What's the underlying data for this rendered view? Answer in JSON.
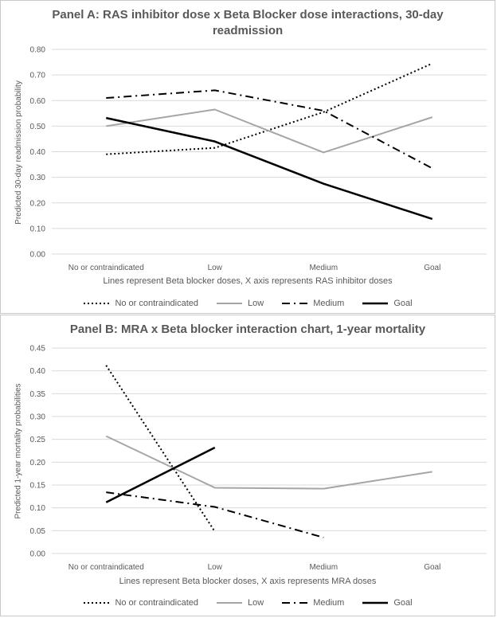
{
  "chart_data": [
    {
      "type": "line",
      "title": "Panel A: RAS inhibitor dose x Beta Blocker dose interactions, 30-day readmission",
      "title_line1": "Panel A: RAS inhibitor dose x Beta Blocker dose interactions, 30-day",
      "title_line2": "readmission",
      "xlabel": "Lines represent Beta blocker doses, X axis represents RAS inhibitor doses",
      "ylabel": "Predicted 30-day readmission probability",
      "categories": [
        "No or contraindicated",
        "Low",
        "Medium",
        "Goal"
      ],
      "ylim": [
        0,
        0.8
      ],
      "yticks": [
        "0.00",
        "0.10",
        "0.20",
        "0.30",
        "0.40",
        "0.50",
        "0.60",
        "0.70",
        "0.80"
      ],
      "grid": true,
      "legend": "bottom",
      "series": [
        {
          "name": "No or contraindicated",
          "style": "dotted",
          "color": "#000000",
          "values": [
            0.39,
            0.415,
            0.555,
            0.745
          ]
        },
        {
          "name": "Low",
          "style": "solid",
          "color": "#a6a6a6",
          "values": [
            0.5,
            0.565,
            0.397,
            0.535
          ]
        },
        {
          "name": "Medium",
          "style": "dashdot",
          "color": "#000000",
          "values": [
            0.61,
            0.64,
            0.56,
            0.335
          ]
        },
        {
          "name": "Goal",
          "style": "solid",
          "color": "#000000",
          "values": [
            0.532,
            0.44,
            0.275,
            0.137
          ]
        }
      ]
    },
    {
      "type": "line",
      "title": "Panel B: MRA x Beta blocker interaction chart, 1-year mortality",
      "xlabel": "Lines represent Beta blocker doses, X axis represents MRA doses",
      "ylabel": "Predicted 1-year mortality probabilities",
      "categories": [
        "No or contraindicated",
        "Low",
        "Medium",
        "Goal"
      ],
      "ylim": [
        0,
        0.45
      ],
      "yticks": [
        "0.00",
        "0.05",
        "0.10",
        "0.15",
        "0.20",
        "0.25",
        "0.30",
        "0.35",
        "0.40",
        "0.45"
      ],
      "grid": true,
      "legend": "bottom",
      "series": [
        {
          "name": "No or contraindicated",
          "style": "dotted",
          "color": "#000000",
          "values": [
            0.412,
            0.048,
            null,
            null
          ]
        },
        {
          "name": "Low",
          "style": "solid",
          "color": "#a6a6a6",
          "values": [
            0.257,
            0.144,
            0.142,
            0.179
          ]
        },
        {
          "name": "Medium",
          "style": "dashdot",
          "color": "#000000",
          "values": [
            0.134,
            0.102,
            0.035,
            null
          ]
        },
        {
          "name": "Goal",
          "style": "solid",
          "color": "#000000",
          "values": [
            0.112,
            0.232,
            null,
            null
          ]
        }
      ]
    }
  ]
}
